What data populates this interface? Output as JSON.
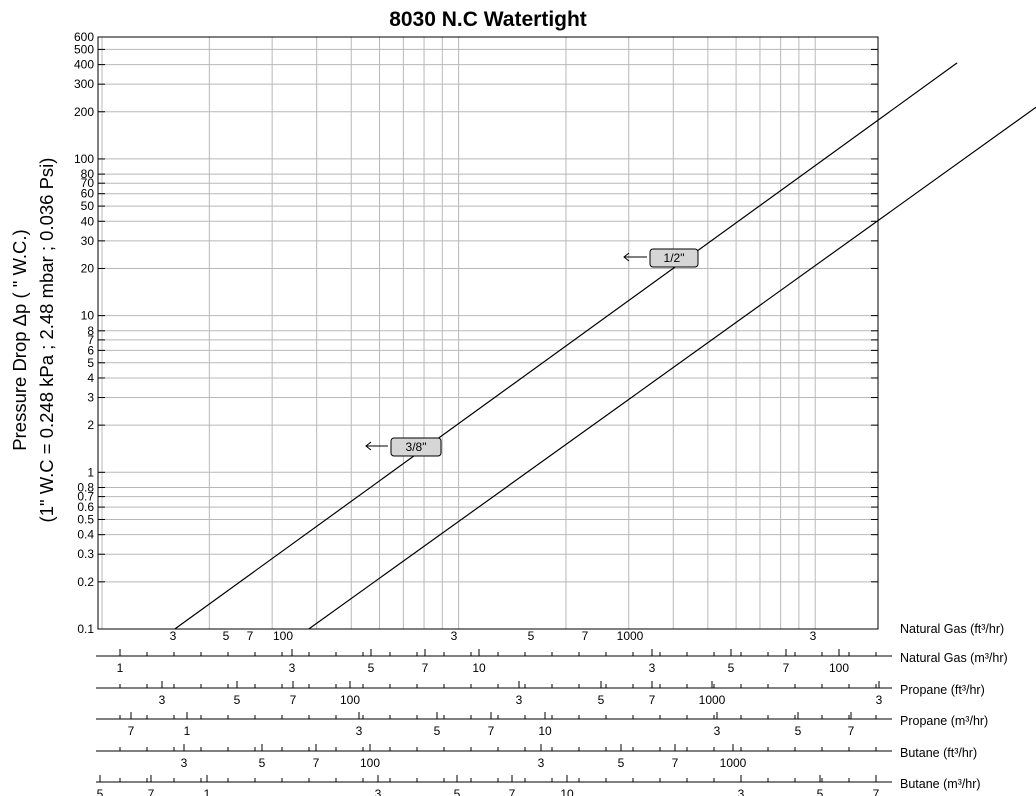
{
  "chart_data": {
    "type": "line",
    "title": "8030 N.C Watertight",
    "y_axis": {
      "scale": "log",
      "label_line1": "Pressure Drop Δp ( \" W.C.)",
      "label_line2": "(1\" W.C = 0.248 kPa ; 2.48 mbar ; 0.036 Psi)",
      "range": [
        0.1,
        600
      ],
      "tick_labels": [
        "0.1",
        "0.2",
        "0.3",
        "0.4",
        "0.5",
        "0.6",
        "0.7",
        "0.8",
        "1",
        "2",
        "3",
        "4",
        "5",
        "6",
        "7",
        "8",
        "10",
        "20",
        "30",
        "40",
        "50",
        "60",
        "70",
        "80",
        "100",
        "200",
        "300",
        "400",
        "500",
        "600"
      ]
    },
    "grid": true,
    "flow_scales": [
      {
        "label": "Natural Gas (ft³/hr)",
        "tick_labels": [
          "3",
          "5",
          "7",
          "100",
          "3",
          "5",
          "7",
          "1000",
          "3"
        ]
      },
      {
        "label": "Natural Gas (m³/hr)",
        "tick_labels": [
          "1",
          "3",
          "5",
          "7",
          "10",
          "3",
          "5",
          "7",
          "100"
        ]
      },
      {
        "label": "Propane (ft³/hr)",
        "tick_labels": [
          "3",
          "5",
          "7",
          "100",
          "3",
          "5",
          "7",
          "1000",
          "3"
        ]
      },
      {
        "label": "Propane (m³/hr)",
        "tick_labels": [
          "7",
          "1",
          "3",
          "5",
          "7",
          "10",
          "3",
          "5",
          "7"
        ]
      },
      {
        "label": "Butane (ft³/hr)",
        "tick_labels": [
          "3",
          "5",
          "7",
          "100",
          "3",
          "5",
          "7",
          "1000"
        ]
      },
      {
        "label": "Butane (m³/hr)",
        "tick_labels": [
          "5",
          "7",
          "1",
          "3",
          "5",
          "7",
          "10",
          "3",
          "5",
          "7"
        ]
      }
    ],
    "series": [
      {
        "name": "3/8\"",
        "x_unit": "Natural Gas (ft³/hr)",
        "points": [
          [
            16,
            0.1
          ],
          [
            2500,
            410
          ]
        ]
      },
      {
        "name": "1/2\"",
        "x_unit": "Natural Gas (ft³/hr)",
        "points": [
          [
            38,
            0.1
          ],
          [
            6200,
            410
          ]
        ]
      }
    ]
  }
}
